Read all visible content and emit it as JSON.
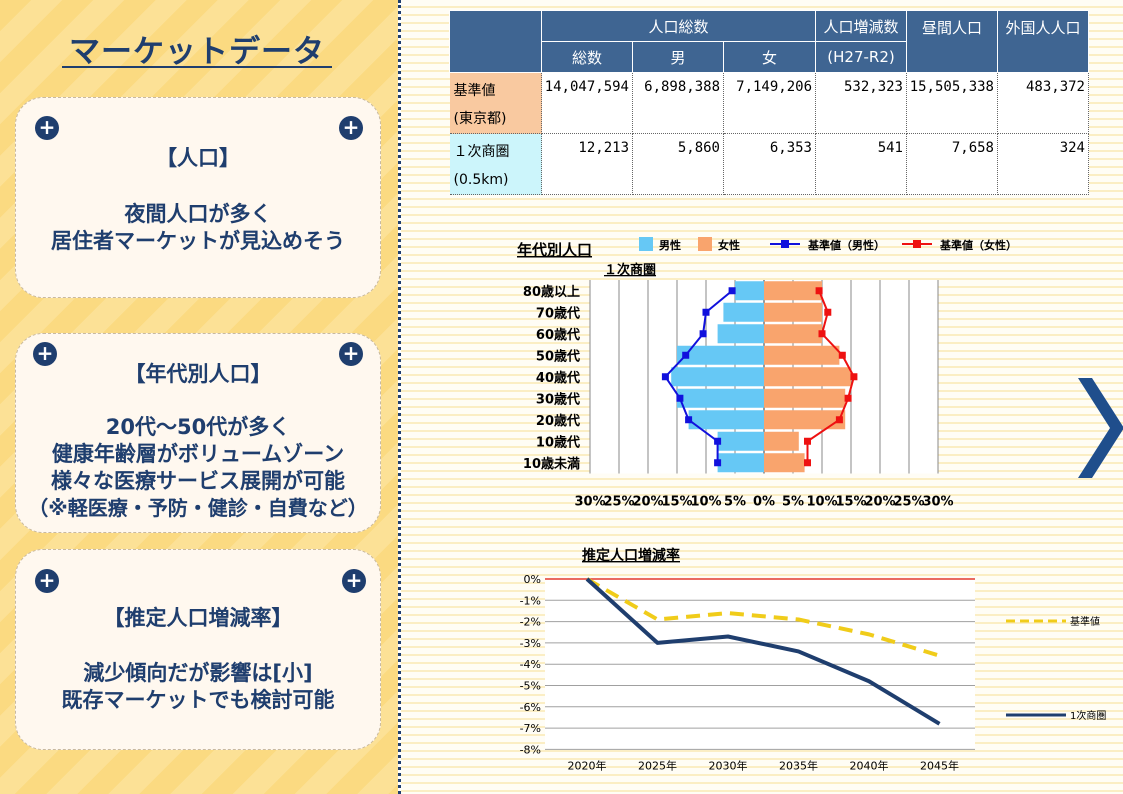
{
  "page": {
    "title": "マーケットデータ"
  },
  "cards": [
    {
      "heading": "【人口】",
      "lines": [
        "夜間人口が多く",
        "居住者マーケットが見込めそう"
      ]
    },
    {
      "heading": "【年代別人口】",
      "lines": [
        "20代～50代が多く",
        "健康年齢層がボリュームゾーン",
        "様々な医療サービス展開が可能",
        "（※軽医療・予防・健診・自費など）"
      ]
    },
    {
      "heading": "【推定人口増減率】",
      "lines": [
        "減少傾向だが影響は[小]",
        "既存マーケットでも検討可能"
      ]
    }
  ],
  "table": {
    "group_header": "人口総数",
    "sub_headers": [
      "総数",
      "男",
      "女"
    ],
    "col_change": "人口増減数",
    "col_change_sub": "(H27-R2)",
    "col_daytime": "昼間人口",
    "col_foreign": "外国人人口",
    "rows": [
      {
        "label1": "基準値",
        "label2": "(東京都)",
        "total": "14,047,594",
        "male": "6,898,388",
        "female": "7,149,206",
        "change": "532,323",
        "daytime": "15,505,338",
        "foreign": "483,372"
      },
      {
        "label1": "１次商圏",
        "label2": "(0.5km)",
        "total": "12,213",
        "male": "5,860",
        "female": "6,353",
        "change": "541",
        "daytime": "7,658",
        "foreign": "324"
      }
    ]
  },
  "chart_data": [
    {
      "type": "bar",
      "title": "年代別人口",
      "subtitle": "１次商圏",
      "orientation": "horizontal-pyramid",
      "categories": [
        "80歳以上",
        "70歳代",
        "60歳代",
        "50歳代",
        "40歳代",
        "30歳代",
        "20歳代",
        "10歳代",
        "10歳未満"
      ],
      "series": [
        {
          "name": "男性",
          "type": "bar",
          "side": "left",
          "color": "#66c8f5",
          "values": [
            5,
            7,
            8,
            15,
            16,
            15,
            13,
            8,
            8
          ]
        },
        {
          "name": "女性",
          "type": "bar",
          "side": "right",
          "color": "#f9a46d",
          "values": [
            10,
            10,
            10,
            13,
            15,
            14,
            14,
            6,
            7
          ]
        },
        {
          "name": "基準値（男性）",
          "type": "line",
          "side": "left",
          "color": "#1111dd",
          "values": [
            5.5,
            10,
            10.5,
            13.5,
            17,
            14.5,
            13,
            8,
            8
          ]
        },
        {
          "name": "基準値（女性）",
          "type": "line",
          "side": "right",
          "color": "#ee1111",
          "values": [
            9.5,
            11,
            10,
            13.5,
            15.5,
            14.5,
            13,
            7.5,
            7.5
          ]
        }
      ],
      "x_ticks": [
        "30%",
        "25%",
        "20%",
        "15%",
        "10%",
        "5%",
        "0%",
        "5%",
        "10%",
        "15%",
        "20%",
        "25%",
        "30%"
      ],
      "xlim": [
        -30,
        30
      ],
      "grid": true,
      "legend_position": "top"
    },
    {
      "type": "line",
      "title": "推定人口増減率",
      "x": [
        "2020年",
        "2025年",
        "2030年",
        "2035年",
        "2040年",
        "2045年"
      ],
      "y_ticks": [
        "0%",
        "-1%",
        "-2%",
        "-3%",
        "-4%",
        "-5%",
        "-6%",
        "-7%",
        "-8%"
      ],
      "ylim": [
        -8,
        0
      ],
      "series": [
        {
          "name": "基準値",
          "style": "dashed",
          "color": "#f0cc1a",
          "values": [
            0,
            -1.9,
            -1.6,
            -1.9,
            -2.6,
            -3.6
          ]
        },
        {
          "name": "1次商圏",
          "style": "solid",
          "color": "#1f3e6e",
          "values": [
            0,
            -3.0,
            -2.7,
            -3.4,
            -4.8,
            -6.8
          ]
        }
      ],
      "grid": true,
      "legend_position": "right"
    }
  ]
}
